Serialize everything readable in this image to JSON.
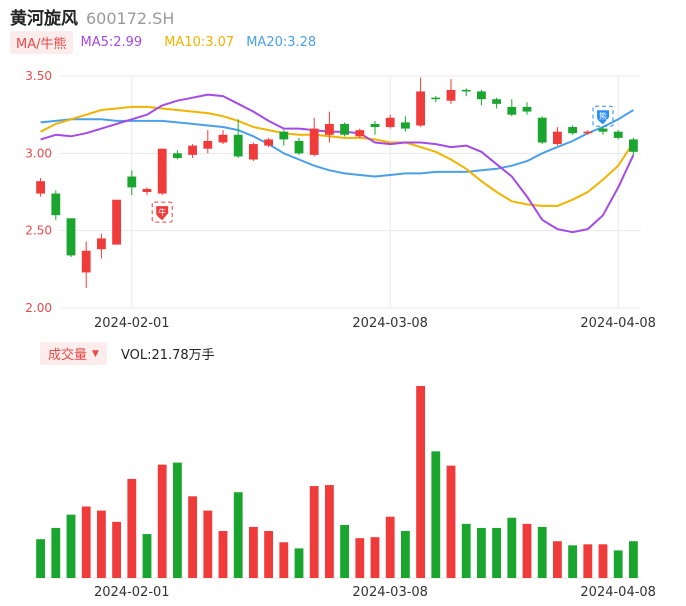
{
  "header": {
    "name": "黄河旋风",
    "code": "600172.SH"
  },
  "ma_legend": {
    "mode_label": "MA/牛熊",
    "ma5": "MA5:2.99",
    "ma10": "MA10:3.07",
    "ma20": "MA20:3.28"
  },
  "volume_legend": {
    "mode_label": "成交量",
    "value": "VOL:21.78万手"
  },
  "colors": {
    "up": "#f03b3b",
    "down": "#1aa52e",
    "ma5": "#a44be6",
    "ma10": "#f0b400",
    "ma20": "#4aa0e8",
    "grid": "#e8e8e8",
    "axis_text": "#e84a4a"
  },
  "badges": {
    "bull": "牛",
    "bear": "熊"
  },
  "chart_data": [
    {
      "type": "candlestick",
      "yticks": [
        "3.50",
        "3.00",
        "2.50",
        "2.00"
      ],
      "ylim": [
        2.0,
        3.5
      ],
      "xticks": [
        {
          "label": "2024-02-01",
          "index": 6
        },
        {
          "label": "2024-03-08",
          "index": 23
        },
        {
          "label": "2024-04-08",
          "index": 38
        }
      ],
      "candles": [
        {
          "o": 2.74,
          "c": 2.82,
          "h": 2.84,
          "l": 2.72
        },
        {
          "o": 2.74,
          "c": 2.6,
          "h": 2.76,
          "l": 2.57
        },
        {
          "o": 2.58,
          "c": 2.34,
          "h": 2.58,
          "l": 2.33
        },
        {
          "o": 2.23,
          "c": 2.37,
          "h": 2.43,
          "l": 2.13
        },
        {
          "o": 2.38,
          "c": 2.45,
          "h": 2.48,
          "l": 2.32
        },
        {
          "o": 2.41,
          "c": 2.7,
          "h": 2.7,
          "l": 2.41
        },
        {
          "o": 2.85,
          "c": 2.78,
          "h": 2.89,
          "l": 2.73
        },
        {
          "o": 2.75,
          "c": 2.77,
          "h": 2.78,
          "l": 2.73
        },
        {
          "o": 2.74,
          "c": 3.03,
          "h": 3.03,
          "l": 2.73
        },
        {
          "o": 3.0,
          "c": 2.97,
          "h": 3.02,
          "l": 2.96
        },
        {
          "o": 2.99,
          "c": 3.05,
          "h": 3.06,
          "l": 2.97
        },
        {
          "o": 3.03,
          "c": 3.08,
          "h": 3.15,
          "l": 3.0
        },
        {
          "o": 3.07,
          "c": 3.12,
          "h": 3.15,
          "l": 3.06
        },
        {
          "o": 3.12,
          "c": 2.98,
          "h": 3.22,
          "l": 2.97
        },
        {
          "o": 2.96,
          "c": 3.06,
          "h": 3.07,
          "l": 2.95
        },
        {
          "o": 3.05,
          "c": 3.09,
          "h": 3.1,
          "l": 3.04
        },
        {
          "o": 3.14,
          "c": 3.09,
          "h": 3.15,
          "l": 3.05
        },
        {
          "o": 3.08,
          "c": 3.0,
          "h": 3.1,
          "l": 2.99
        },
        {
          "o": 2.99,
          "c": 3.16,
          "h": 3.23,
          "l": 2.98
        },
        {
          "o": 3.12,
          "c": 3.19,
          "h": 3.27,
          "l": 3.07
        },
        {
          "o": 3.19,
          "c": 3.12,
          "h": 3.2,
          "l": 3.11
        },
        {
          "o": 3.11,
          "c": 3.15,
          "h": 3.16,
          "l": 3.1
        },
        {
          "o": 3.19,
          "c": 3.17,
          "h": 3.21,
          "l": 3.12
        },
        {
          "o": 3.17,
          "c": 3.23,
          "h": 3.25,
          "l": 3.16
        },
        {
          "o": 3.2,
          "c": 3.16,
          "h": 3.24,
          "l": 3.14
        },
        {
          "o": 3.18,
          "c": 3.4,
          "h": 3.49,
          "l": 3.17
        },
        {
          "o": 3.36,
          "c": 3.35,
          "h": 3.37,
          "l": 3.33
        },
        {
          "o": 3.34,
          "c": 3.41,
          "h": 3.48,
          "l": 3.32
        },
        {
          "o": 3.41,
          "c": 3.4,
          "h": 3.42,
          "l": 3.37
        },
        {
          "o": 3.4,
          "c": 3.35,
          "h": 3.41,
          "l": 3.31
        },
        {
          "o": 3.35,
          "c": 3.32,
          "h": 3.36,
          "l": 3.29
        },
        {
          "o": 3.3,
          "c": 3.25,
          "h": 3.35,
          "l": 3.24
        },
        {
          "o": 3.3,
          "c": 3.27,
          "h": 3.33,
          "l": 3.25
        },
        {
          "o": 3.23,
          "c": 3.07,
          "h": 3.24,
          "l": 3.06
        },
        {
          "o": 3.06,
          "c": 3.14,
          "h": 3.17,
          "l": 3.05
        },
        {
          "o": 3.17,
          "c": 3.13,
          "h": 3.18,
          "l": 3.12
        },
        {
          "o": 3.13,
          "c": 3.14,
          "h": 3.15,
          "l": 3.12
        },
        {
          "o": 3.16,
          "c": 3.14,
          "h": 3.17,
          "l": 3.12
        },
        {
          "o": 3.14,
          "c": 3.1,
          "h": 3.15,
          "l": 3.09
        },
        {
          "o": 3.09,
          "c": 3.01,
          "h": 3.1,
          "l": 2.99
        }
      ],
      "ma5": [
        3.09,
        3.12,
        3.11,
        3.13,
        3.16,
        3.19,
        3.22,
        3.25,
        3.31,
        3.34,
        3.36,
        3.38,
        3.37,
        3.32,
        3.27,
        3.21,
        3.16,
        3.16,
        3.15,
        3.14,
        3.14,
        3.13,
        3.07,
        3.06,
        3.07,
        3.07,
        3.06,
        3.04,
        3.05,
        3.01,
        2.93,
        2.85,
        2.72,
        2.57,
        2.51,
        2.49,
        2.51,
        2.6,
        2.78,
        2.99
      ],
      "ma10": [
        3.14,
        3.19,
        3.22,
        3.25,
        3.28,
        3.29,
        3.3,
        3.3,
        3.29,
        3.28,
        3.27,
        3.26,
        3.24,
        3.21,
        3.17,
        3.15,
        3.13,
        3.12,
        3.12,
        3.11,
        3.1,
        3.1,
        3.09,
        3.07,
        3.07,
        3.04,
        3.01,
        2.96,
        2.9,
        2.82,
        2.75,
        2.69,
        2.67,
        2.66,
        2.66,
        2.7,
        2.75,
        2.83,
        2.92,
        3.07
      ],
      "ma20": [
        3.2,
        3.21,
        3.22,
        3.22,
        3.22,
        3.21,
        3.21,
        3.21,
        3.21,
        3.2,
        3.19,
        3.18,
        3.17,
        3.15,
        3.11,
        3.06,
        3.0,
        2.96,
        2.92,
        2.89,
        2.87,
        2.86,
        2.85,
        2.86,
        2.87,
        2.87,
        2.88,
        2.88,
        2.88,
        2.89,
        2.9,
        2.92,
        2.95,
        3.0,
        3.04,
        3.08,
        3.13,
        3.17,
        3.22,
        3.28
      ]
    },
    {
      "type": "bar",
      "series_name": "VOL",
      "values": [
        3.8,
        4.9,
        6.2,
        7.0,
        6.6,
        5.5,
        9.7,
        4.3,
        11.1,
        11.3,
        8.0,
        6.6,
        4.6,
        8.4,
        5.0,
        4.6,
        3.5,
        2.9,
        9.0,
        9.1,
        5.2,
        3.9,
        4.0,
        6.0,
        4.6,
        18.8,
        12.4,
        11.0,
        5.3,
        4.9,
        4.9,
        5.9,
        5.3,
        5.0,
        3.6,
        3.2,
        3.3,
        3.3,
        2.7,
        3.6
      ],
      "colors_up": [
        false,
        false,
        false,
        true,
        true,
        true,
        true,
        false,
        true,
        false,
        true,
        true,
        true,
        false,
        true,
        true,
        true,
        false,
        true,
        true,
        false,
        true,
        true,
        true,
        false,
        true,
        false,
        true,
        false,
        false,
        false,
        false,
        true,
        false,
        true,
        false,
        true,
        true,
        false,
        false
      ]
    }
  ]
}
